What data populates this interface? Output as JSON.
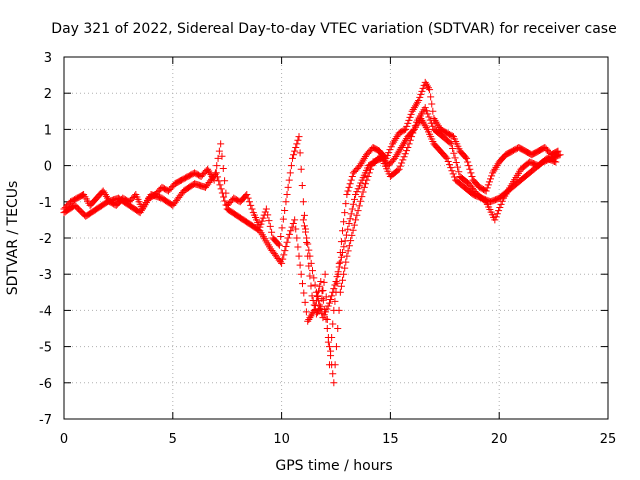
{
  "chart_data": {
    "type": "scatter",
    "title": "Day 321 of 2022, Sidereal Day-to-day VTEC variation (SDTVAR) for receiver case",
    "xlabel": "GPS time / hours",
    "ylabel": "SDTVAR / TECUs",
    "xlim": [
      0,
      25
    ],
    "ylim": [
      -7,
      3
    ],
    "xticks": [
      0,
      5,
      10,
      15,
      20,
      25
    ],
    "yticks": [
      -7,
      -6,
      -5,
      -4,
      -3,
      -2,
      -1,
      0,
      1,
      2,
      3
    ],
    "grid": true,
    "legend": "none",
    "marker": "plus",
    "color": "#ff0000",
    "series": [
      {
        "values_x": [
          0.0,
          0.3,
          0.6,
          0.9,
          1.2,
          1.5,
          1.8,
          2.1,
          2.4,
          2.7,
          3.0,
          3.3,
          3.6,
          3.9,
          4.2,
          4.5,
          4.8,
          5.1,
          5.4,
          5.7,
          6.0,
          6.3,
          6.6,
          6.9,
          7.2,
          7.5,
          7.8,
          8.1,
          8.4,
          8.7,
          9.0,
          9.3,
          9.6,
          9.9,
          10.2,
          10.5,
          10.8,
          11.0,
          11.2,
          11.4,
          11.6,
          11.8,
          12.0,
          12.2,
          12.4,
          12.6,
          12.8,
          13.0,
          13.3,
          13.6,
          13.9,
          14.2,
          14.5,
          14.8,
          15.1,
          15.4,
          15.7,
          16.0,
          16.3,
          16.6,
          16.8,
          17.0,
          17.3,
          17.6,
          17.9,
          18.2,
          18.5,
          18.8,
          19.1,
          19.4,
          19.7,
          20.0,
          20.3,
          20.6,
          20.9,
          21.2,
          21.5,
          21.8,
          22.1,
          22.4,
          22.7
        ],
        "values_y": [
          -1.2,
          -1.0,
          -0.9,
          -0.8,
          -1.1,
          -0.9,
          -0.7,
          -1.0,
          -1.1,
          -0.9,
          -1.0,
          -0.8,
          -1.2,
          -0.9,
          -0.8,
          -0.6,
          -0.7,
          -0.5,
          -0.4,
          -0.3,
          -0.2,
          -0.3,
          -0.1,
          -0.4,
          0.6,
          -1.1,
          -0.9,
          -1.0,
          -0.8,
          -1.3,
          -1.7,
          -1.2,
          -2.0,
          -2.2,
          -1.0,
          0.2,
          0.8,
          -1.0,
          -2.5,
          -3.6,
          -4.1,
          -3.9,
          -3.0,
          -5.5,
          -4.0,
          -3.0,
          -1.8,
          -0.8,
          -0.2,
          0.0,
          0.3,
          0.5,
          0.4,
          0.2,
          0.6,
          0.9,
          1.0,
          1.5,
          1.8,
          2.3,
          2.1,
          1.3,
          1.0,
          0.9,
          0.8,
          0.4,
          0.2,
          -0.4,
          -0.6,
          -0.7,
          -0.2,
          0.1,
          0.3,
          0.4,
          0.5,
          0.4,
          0.3,
          0.4,
          0.5,
          0.3,
          0.4
        ]
      },
      {
        "values_x": [
          0.0,
          0.5,
          1.0,
          1.5,
          2.0,
          2.5,
          3.0,
          3.5,
          4.0,
          4.5,
          5.0,
          5.5,
          6.0,
          6.5,
          7.0,
          7.5,
          8.0,
          8.5,
          9.0,
          9.5,
          10.0,
          10.3,
          10.6,
          10.9,
          11.2,
          11.5,
          11.8,
          12.1,
          12.4,
          12.7,
          13.0,
          13.4,
          13.8,
          14.2,
          14.6,
          15.0,
          15.4,
          15.8,
          16.2,
          16.6,
          17.0,
          17.4,
          17.8,
          18.2,
          18.6,
          19.0,
          19.4,
          19.8,
          20.2,
          20.6,
          21.0,
          21.4,
          21.8,
          22.2,
          22.6
        ],
        "values_y": [
          -1.3,
          -1.1,
          -1.4,
          -1.2,
          -1.0,
          -0.9,
          -1.1,
          -1.3,
          -0.8,
          -0.9,
          -1.1,
          -0.7,
          -0.5,
          -0.6,
          -0.2,
          -1.2,
          -1.4,
          -1.6,
          -1.8,
          -2.3,
          -2.7,
          -2.0,
          -1.5,
          -3.0,
          -4.3,
          -4.0,
          -3.2,
          -4.5,
          -6.0,
          -3.5,
          -2.5,
          -1.5,
          -0.6,
          0.1,
          0.2,
          -0.3,
          -0.1,
          0.5,
          1.2,
          1.6,
          1.0,
          0.8,
          0.6,
          -0.3,
          -0.5,
          -0.8,
          -1.0,
          -1.5,
          -0.9,
          -0.5,
          -0.1,
          0.1,
          0.0,
          0.2,
          0.1
        ]
      },
      {
        "values_x": [
          11.0,
          11.3,
          11.6,
          11.9,
          12.2,
          12.5,
          12.8,
          13.1,
          13.4,
          13.7,
          14.0,
          14.3,
          14.6,
          14.9,
          15.2,
          15.5,
          15.8,
          16.1,
          16.4,
          16.7,
          17.0,
          17.3,
          17.6,
          18.0,
          18.4,
          18.8,
          19.2,
          19.6,
          20.0,
          20.4,
          20.8,
          21.2,
          21.6,
          22.0,
          22.4,
          22.8
        ],
        "values_y": [
          -1.5,
          -2.5,
          -3.5,
          -4.2,
          -3.8,
          -3.2,
          -2.4,
          -1.6,
          -0.8,
          -0.4,
          0.0,
          0.1,
          0.3,
          0.0,
          0.2,
          0.5,
          0.8,
          1.0,
          1.3,
          1.0,
          0.6,
          0.4,
          0.2,
          -0.4,
          -0.6,
          -0.8,
          -0.9,
          -1.0,
          -0.9,
          -0.7,
          -0.5,
          -0.3,
          -0.1,
          0.1,
          0.2,
          0.3
        ]
      }
    ]
  }
}
